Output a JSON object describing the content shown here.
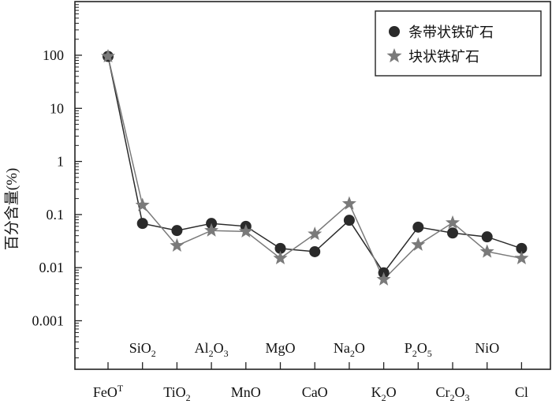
{
  "chart_data": {
    "type": "line",
    "y_scale": "log",
    "ylim": [
      0.0001,
      1000
    ],
    "ylabel": "百分含量(%)",
    "y_ticks": [
      {
        "value": 100,
        "label": "100"
      },
      {
        "value": 10,
        "label": "10"
      },
      {
        "value": 1,
        "label": "1"
      },
      {
        "value": 0.1,
        "label": "0.1"
      },
      {
        "value": 0.01,
        "label": "0.01"
      },
      {
        "value": 0.001,
        "label": "0.001"
      }
    ],
    "categories": [
      {
        "base": "FeO",
        "sup": "T"
      },
      {
        "base": "SiO",
        "sub": "2"
      },
      {
        "base": "TiO",
        "sub": "2"
      },
      {
        "base": "Al",
        "sub": "2",
        "base2": "O",
        "sub2": "3"
      },
      {
        "base": "MnO"
      },
      {
        "base": "MgO"
      },
      {
        "base": "CaO"
      },
      {
        "base": "Na",
        "sub": "2",
        "base2": "O"
      },
      {
        "base": "K",
        "sub": "2",
        "base2": "O"
      },
      {
        "base": "P",
        "sub": "2",
        "base2": "O",
        "sub2": "5"
      },
      {
        "base": "Cr",
        "sub": "2",
        "base2": "O",
        "sub2": "3"
      },
      {
        "base": "NiO"
      },
      {
        "base": "Cl"
      }
    ],
    "series": [
      {
        "name": "条带状铁矿石",
        "marker": "circle",
        "color": "#2a2a2a",
        "values": [
          95,
          0.068,
          0.05,
          0.068,
          0.06,
          0.023,
          0.02,
          0.078,
          0.008,
          0.058,
          0.045,
          0.038,
          0.023
        ]
      },
      {
        "name": "块状铁矿石",
        "marker": "star",
        "color": "#7a7a7a",
        "values": [
          95,
          0.15,
          0.026,
          0.05,
          0.048,
          0.015,
          0.043,
          0.16,
          0.006,
          0.027,
          0.07,
          0.02,
          0.015
        ]
      }
    ],
    "legend_position": "top-right",
    "grid": false
  }
}
